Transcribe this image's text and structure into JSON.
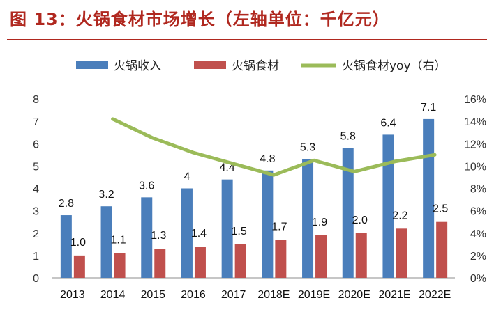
{
  "title": "图 13：火锅食材市场增长（左轴单位：千亿元）",
  "chart_data": {
    "type": "bar",
    "categories": [
      "2013",
      "2014",
      "2015",
      "2016",
      "2017",
      "2018E",
      "2019E",
      "2020E",
      "2021E",
      "2022E"
    ],
    "series": [
      {
        "name": "火锅收入",
        "values": [
          2.8,
          3.2,
          3.6,
          4.0,
          4.4,
          4.8,
          5.3,
          5.8,
          6.4,
          7.1
        ],
        "labels": [
          "2.8",
          "3.2",
          "3.6",
          "4",
          "4.4",
          "4.8",
          "5.3",
          "5.8",
          "6.4",
          "7.1"
        ],
        "color": "#4a7ebb",
        "axis": "left"
      },
      {
        "name": "火锅食材",
        "values": [
          1.0,
          1.1,
          1.3,
          1.4,
          1.5,
          1.7,
          1.9,
          2.0,
          2.2,
          2.5
        ],
        "labels": [
          "1.0",
          "1.1",
          "1.3",
          "1.4",
          "1.5",
          "1.7",
          "1.9",
          "2.0",
          "2.2",
          "2.5"
        ],
        "color": "#c0504d",
        "axis": "left"
      },
      {
        "name": "火锅食材yoy（右）",
        "type": "line",
        "axis": "right",
        "color": "#9bbb59",
        "values": [
          null,
          14.2,
          12.5,
          11.2,
          10.2,
          9.2,
          10.5,
          9.5,
          10.4,
          11.0
        ]
      }
    ],
    "ylim_left": [
      0,
      8
    ],
    "ylim_right": [
      0,
      16
    ],
    "yticks_left": [
      "0",
      "1",
      "2",
      "3",
      "4",
      "5",
      "6",
      "7",
      "8"
    ],
    "yticks_right": [
      "0%",
      "2%",
      "4%",
      "6%",
      "8%",
      "10%",
      "12%",
      "14%",
      "16%"
    ],
    "legend": "top",
    "grid": false
  }
}
